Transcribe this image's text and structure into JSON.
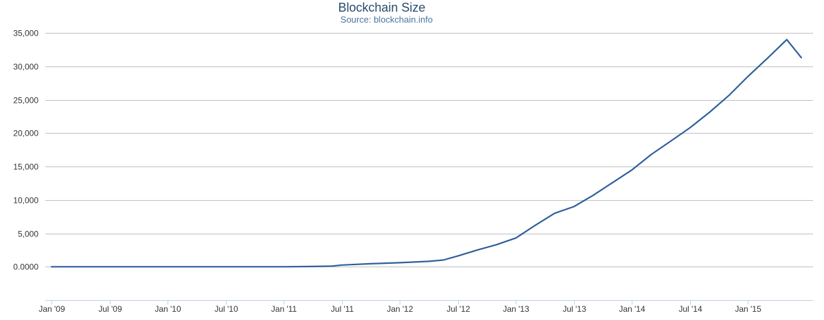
{
  "chart_data": {
    "type": "line",
    "title": "Blockchain Size",
    "subtitle": "Source: blockchain.info",
    "xlabel": "",
    "ylabel": "",
    "ylim": [
      -5000,
      35000
    ],
    "y_ticks": [
      0,
      5000,
      10000,
      15000,
      20000,
      25000,
      30000,
      35000
    ],
    "y_tick_labels": [
      "0.0000",
      "5,000",
      "10,000",
      "15,000",
      "20,000",
      "25,000",
      "30,000",
      "35,000"
    ],
    "x_tick_labels": [
      "Jan '09",
      "Jul '09",
      "Jan '10",
      "Jul '10",
      "Jan '11",
      "Jul '11",
      "Jan '12",
      "Jul '12",
      "Jan '13",
      "Jul '13",
      "Jan '14",
      "Jul '14",
      "Jan '15"
    ],
    "x_tick_months": [
      0,
      6,
      12,
      18,
      24,
      30,
      36,
      42,
      48,
      54,
      60,
      66,
      72
    ],
    "xlim_months": [
      0,
      78.5
    ],
    "grid": true,
    "series": [
      {
        "name": "Blockchain Size",
        "color": "#2f5f9a",
        "x_months": [
          0,
          6,
          12,
          18,
          24,
          27,
          29,
          30,
          33,
          36,
          39,
          40.5,
          42,
          44,
          46,
          48,
          50,
          52,
          54,
          56,
          58,
          60,
          62,
          64,
          66,
          68,
          70,
          72,
          74,
          76,
          77.5
        ],
        "values": [
          0,
          0,
          0,
          0,
          0,
          40,
          100,
          250,
          450,
          600,
          800,
          1000,
          1600,
          2500,
          3300,
          4300,
          6200,
          8000,
          9000,
          10700,
          12600,
          14500,
          16800,
          18800,
          20800,
          23100,
          25600,
          28500,
          31200,
          34000,
          31300
        ]
      }
    ]
  }
}
